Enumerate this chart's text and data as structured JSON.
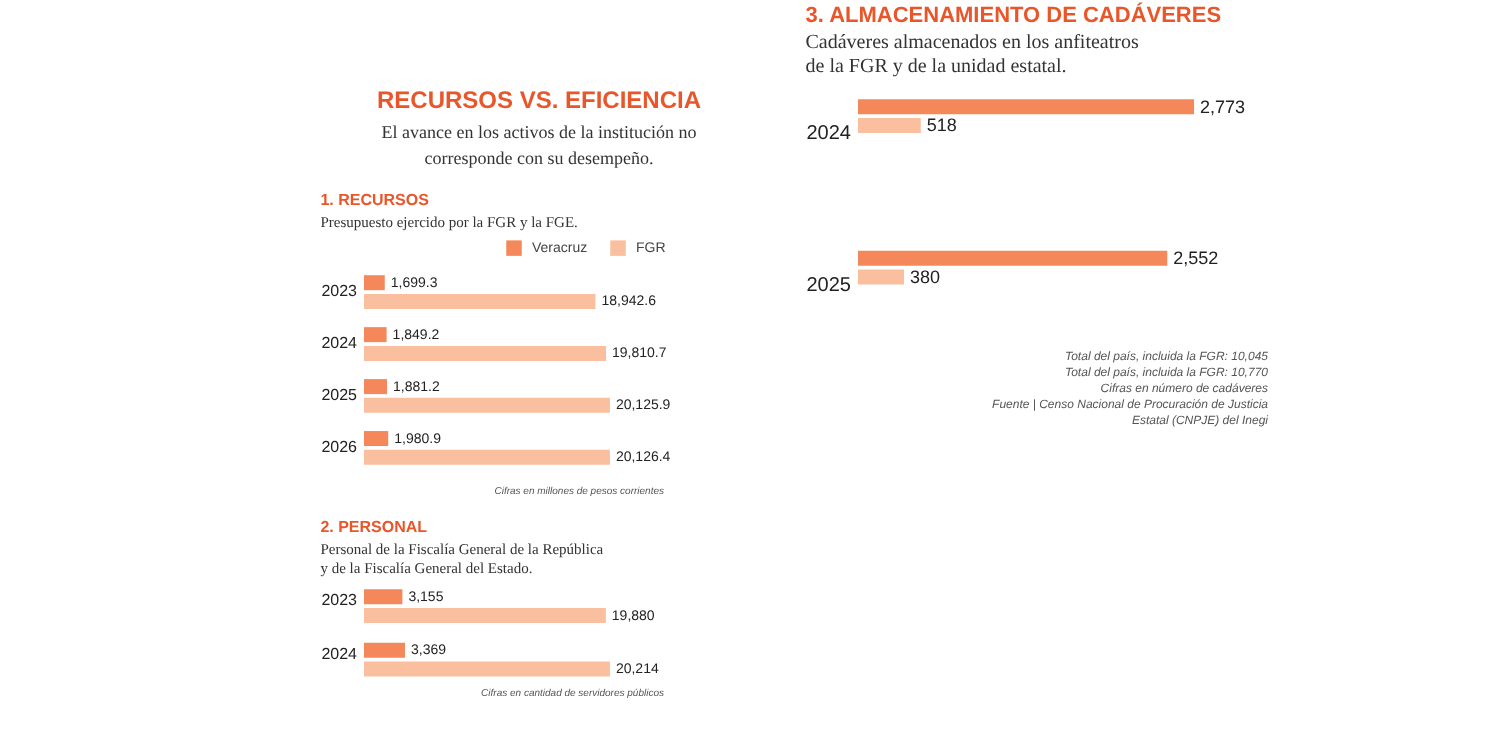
{
  "chart_data": [
    {
      "type": "other",
      "title": "RECURSOS VS. EFICIENCIA",
      "subtitle": "El avance en los activos de la institución no corresponde con su desempeño."
    },
    {
      "type": "bar",
      "orientation": "horizontal",
      "title": "1. RECURSOS",
      "subtitle": "Presupuesto ejercido por la FGR y la FGE.",
      "categories": [
        "2023",
        "2024",
        "2025",
        "2026"
      ],
      "series": [
        {
          "name": "Veracruz",
          "color": "#f4885a",
          "values": [
            1699.3,
            1849.2,
            1881.2,
            1980.9
          ],
          "value_labels": [
            "1,699.3",
            "1,849.2",
            "1,881.2",
            "1,980.9"
          ]
        },
        {
          "name": "FGR",
          "color": "#f9bf9f",
          "values": [
            18942.6,
            19810.7,
            20125.9,
            20126.4
          ],
          "value_labels": [
            "18,942.6",
            "19,810.7",
            "20,125.9",
            "20,126.4"
          ]
        }
      ],
      "legend": "top right",
      "annotations": [
        "Cifras en millones de pesos corrientes"
      ]
    },
    {
      "type": "bar",
      "orientation": "horizontal",
      "title": "2. PERSONAL",
      "subtitle": "Personal de la Fiscalía General de la República y de la Fiscalía General del Estado.",
      "categories": [
        "2023",
        "2024"
      ],
      "series": [
        {
          "color": "#f4885a",
          "values": [
            3155,
            3369
          ],
          "value_labels": [
            "3,155",
            "3,369"
          ]
        },
        {
          "color": "#f9bf9f",
          "values": [
            19880,
            20214
          ],
          "value_labels": [
            "19,880",
            "20,214"
          ]
        }
      ],
      "annotations": [
        "Cifras en cantidad de servidores públicos"
      ]
    },
    {
      "type": "bar",
      "orientation": "horizontal",
      "title": "3. ALMACENAMIENTO DE CADÁVERES",
      "subtitle": "Cadáveres almacenados en los anfiteatros de la FGR y de la unidad estatal.",
      "categories": [
        "2024",
        "2025"
      ],
      "series": [
        {
          "color": "#f4885a",
          "values": [
            2773,
            2552
          ],
          "value_labels": [
            "2,773",
            "2,552"
          ]
        },
        {
          "color": "#f9bf9f",
          "values": [
            518,
            380
          ],
          "value_labels": [
            "518",
            "380"
          ]
        }
      ],
      "annotations": [
        "Total del país, incluida la FGR: 10,045",
        "Total del país, incluida la FGR: 10,770",
        "Cifras en número de cadáveres",
        "Fuente | Censo Nacional de Procuración de Justicia Estatal (CNPJE) del Inegi"
      ]
    }
  ]
}
